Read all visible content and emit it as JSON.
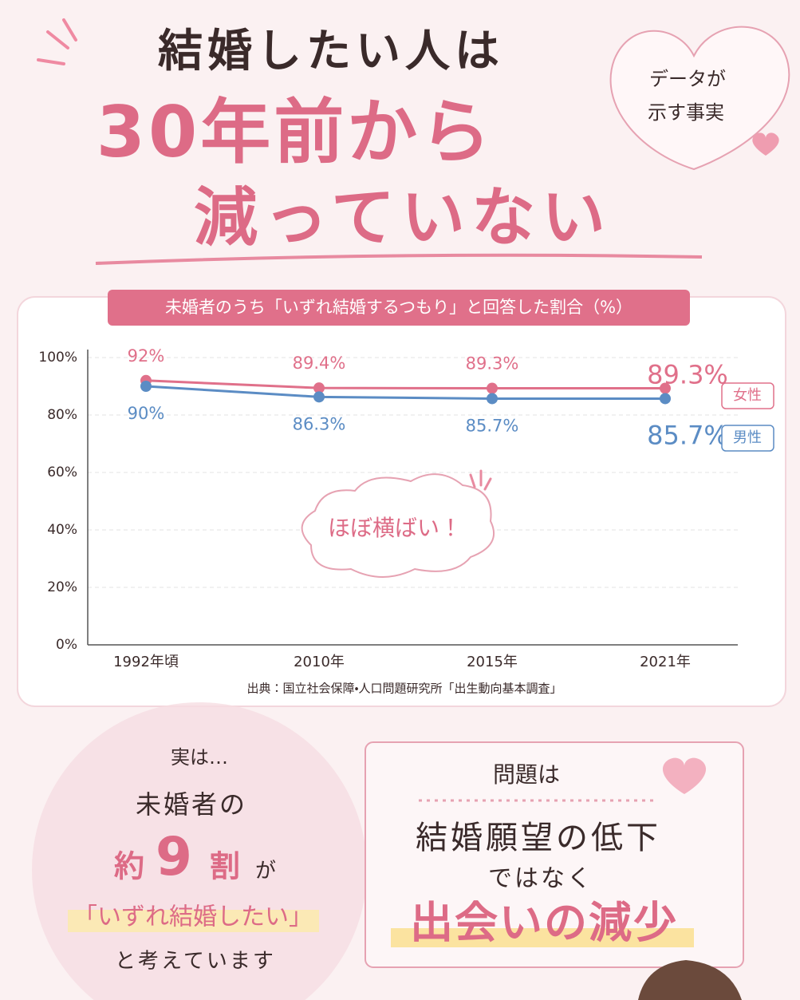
{
  "header": {
    "line1": "結婚したい人は",
    "line2": "30年前から",
    "line3": "減っていない",
    "badge": [
      "データが",
      "示す事実"
    ]
  },
  "chart_data": {
    "type": "line",
    "title": "未婚者のうち「いずれ結婚するつもり」と回答した割合（%）",
    "categories": [
      "1992年頃",
      "2010年",
      "2015年",
      "2021年"
    ],
    "series": [
      {
        "name": "女性",
        "color": "#e0708a",
        "values": [
          92,
          89.4,
          89.3,
          89.3
        ],
        "value_labels": [
          "92%",
          "89.4%",
          "89.3%",
          "89.3%"
        ]
      },
      {
        "name": "男性",
        "color": "#5b8cc4",
        "values": [
          90,
          86.3,
          85.7,
          85.7
        ],
        "value_labels": [
          "90%",
          "86.3%",
          "85.7%",
          "85.7%"
        ]
      }
    ],
    "ylim": [
      0,
      100
    ],
    "yticks": [
      {
        "value": 0,
        "label": "0%"
      },
      {
        "value": 20,
        "label": "20%"
      },
      {
        "value": 40,
        "label": "40%"
      },
      {
        "value": 60,
        "label": "60%"
      },
      {
        "value": 80,
        "label": "80%"
      },
      {
        "value": 100,
        "label": "100%"
      }
    ],
    "grid": true,
    "annotation": "ほぼ横ばい！",
    "source": "出典：国立社会保障・人口問題研究所「出生動向基本調査」"
  },
  "left_panel": {
    "intro": "実は…",
    "line1": "未婚者の",
    "prefix": "約",
    "number": "9",
    "unit": "割",
    "particle": "が",
    "quote": "「いずれ結婚したい」",
    "closing": "と考えています"
  },
  "right_panel": {
    "heading": "問題は",
    "line1": "結婚願望の低下",
    "line2": "ではなく",
    "highlight": "出会いの減少"
  }
}
